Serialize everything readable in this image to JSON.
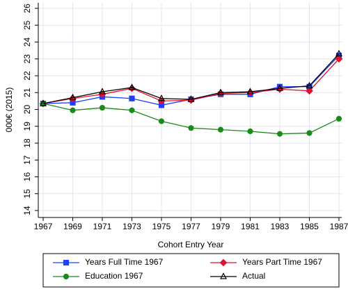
{
  "chart_data": {
    "type": "line",
    "x_label": "Cohort Entry Year",
    "y_label": "000€ (2015)",
    "x": [
      1967,
      1969,
      1971,
      1973,
      1975,
      1977,
      1979,
      1981,
      1983,
      1985,
      1987
    ],
    "xlim": [
      1967,
      1987
    ],
    "xticks": [
      1967,
      1969,
      1971,
      1973,
      1975,
      1977,
      1979,
      1981,
      1983,
      1985,
      1987
    ],
    "ylim": [
      14,
      26
    ],
    "yticks": [
      14,
      15,
      16,
      17,
      18,
      19,
      20,
      21,
      22,
      23,
      24,
      25,
      26
    ],
    "grid": true,
    "legend_position": "bottom",
    "series": [
      {
        "name": "Years Full Time 1967",
        "color": "#1f3fff",
        "marker": "square",
        "values": [
          20.35,
          20.4,
          20.75,
          20.65,
          20.25,
          20.6,
          20.9,
          20.9,
          21.35,
          21.35,
          23.2
        ]
      },
      {
        "name": "Years Part Time 1967",
        "color": "#e0102f",
        "marker": "diamond",
        "values": [
          20.35,
          20.65,
          20.9,
          21.25,
          20.5,
          20.55,
          20.95,
          21.0,
          21.2,
          21.1,
          23.0
        ]
      },
      {
        "name": "Education 1967",
        "color": "#1a8a1a",
        "marker": "circle",
        "values": [
          20.35,
          19.95,
          20.1,
          19.95,
          19.3,
          18.9,
          18.8,
          18.7,
          18.55,
          18.6,
          19.45
        ]
      },
      {
        "name": "Actual",
        "color": "#000000",
        "marker": "triangle",
        "values": [
          20.35,
          20.7,
          21.05,
          21.3,
          20.65,
          20.6,
          21.0,
          21.05,
          21.25,
          21.4,
          23.3
        ]
      }
    ]
  }
}
